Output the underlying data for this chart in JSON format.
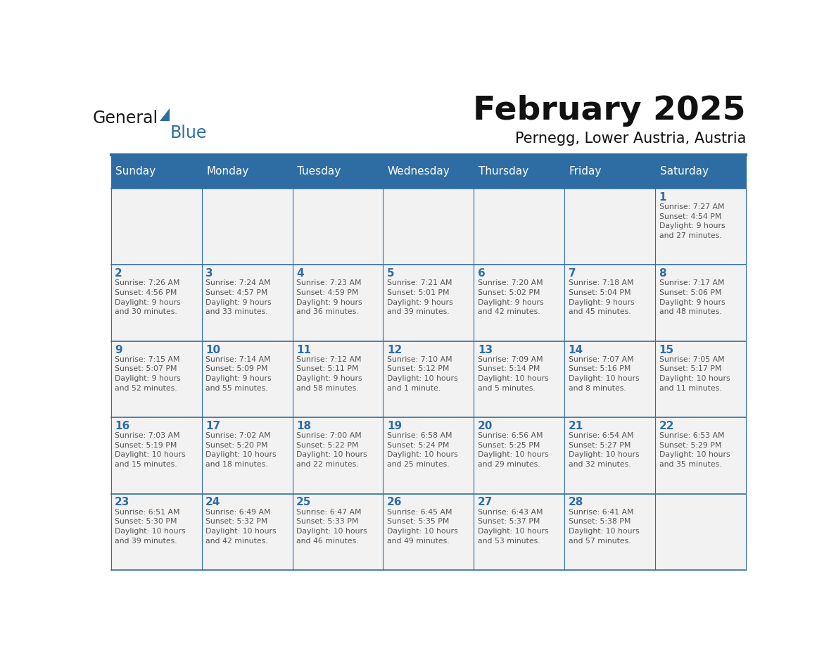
{
  "title": "February 2025",
  "subtitle": "Pernegg, Lower Austria, Austria",
  "header_color": "#2E6DA4",
  "header_text_color": "#FFFFFF",
  "cell_bg_color": "#F2F2F2",
  "border_color": "#2E6DA4",
  "text_color": "#555555",
  "day_number_color": "#2E6DA4",
  "days_of_week": [
    "Sunday",
    "Monday",
    "Tuesday",
    "Wednesday",
    "Thursday",
    "Friday",
    "Saturday"
  ],
  "weeks": [
    [
      {
        "day": null,
        "info": null
      },
      {
        "day": null,
        "info": null
      },
      {
        "day": null,
        "info": null
      },
      {
        "day": null,
        "info": null
      },
      {
        "day": null,
        "info": null
      },
      {
        "day": null,
        "info": null
      },
      {
        "day": 1,
        "info": "Sunrise: 7:27 AM\nSunset: 4:54 PM\nDaylight: 9 hours\nand 27 minutes."
      }
    ],
    [
      {
        "day": 2,
        "info": "Sunrise: 7:26 AM\nSunset: 4:56 PM\nDaylight: 9 hours\nand 30 minutes."
      },
      {
        "day": 3,
        "info": "Sunrise: 7:24 AM\nSunset: 4:57 PM\nDaylight: 9 hours\nand 33 minutes."
      },
      {
        "day": 4,
        "info": "Sunrise: 7:23 AM\nSunset: 4:59 PM\nDaylight: 9 hours\nand 36 minutes."
      },
      {
        "day": 5,
        "info": "Sunrise: 7:21 AM\nSunset: 5:01 PM\nDaylight: 9 hours\nand 39 minutes."
      },
      {
        "day": 6,
        "info": "Sunrise: 7:20 AM\nSunset: 5:02 PM\nDaylight: 9 hours\nand 42 minutes."
      },
      {
        "day": 7,
        "info": "Sunrise: 7:18 AM\nSunset: 5:04 PM\nDaylight: 9 hours\nand 45 minutes."
      },
      {
        "day": 8,
        "info": "Sunrise: 7:17 AM\nSunset: 5:06 PM\nDaylight: 9 hours\nand 48 minutes."
      }
    ],
    [
      {
        "day": 9,
        "info": "Sunrise: 7:15 AM\nSunset: 5:07 PM\nDaylight: 9 hours\nand 52 minutes."
      },
      {
        "day": 10,
        "info": "Sunrise: 7:14 AM\nSunset: 5:09 PM\nDaylight: 9 hours\nand 55 minutes."
      },
      {
        "day": 11,
        "info": "Sunrise: 7:12 AM\nSunset: 5:11 PM\nDaylight: 9 hours\nand 58 minutes."
      },
      {
        "day": 12,
        "info": "Sunrise: 7:10 AM\nSunset: 5:12 PM\nDaylight: 10 hours\nand 1 minute."
      },
      {
        "day": 13,
        "info": "Sunrise: 7:09 AM\nSunset: 5:14 PM\nDaylight: 10 hours\nand 5 minutes."
      },
      {
        "day": 14,
        "info": "Sunrise: 7:07 AM\nSunset: 5:16 PM\nDaylight: 10 hours\nand 8 minutes."
      },
      {
        "day": 15,
        "info": "Sunrise: 7:05 AM\nSunset: 5:17 PM\nDaylight: 10 hours\nand 11 minutes."
      }
    ],
    [
      {
        "day": 16,
        "info": "Sunrise: 7:03 AM\nSunset: 5:19 PM\nDaylight: 10 hours\nand 15 minutes."
      },
      {
        "day": 17,
        "info": "Sunrise: 7:02 AM\nSunset: 5:20 PM\nDaylight: 10 hours\nand 18 minutes."
      },
      {
        "day": 18,
        "info": "Sunrise: 7:00 AM\nSunset: 5:22 PM\nDaylight: 10 hours\nand 22 minutes."
      },
      {
        "day": 19,
        "info": "Sunrise: 6:58 AM\nSunset: 5:24 PM\nDaylight: 10 hours\nand 25 minutes."
      },
      {
        "day": 20,
        "info": "Sunrise: 6:56 AM\nSunset: 5:25 PM\nDaylight: 10 hours\nand 29 minutes."
      },
      {
        "day": 21,
        "info": "Sunrise: 6:54 AM\nSunset: 5:27 PM\nDaylight: 10 hours\nand 32 minutes."
      },
      {
        "day": 22,
        "info": "Sunrise: 6:53 AM\nSunset: 5:29 PM\nDaylight: 10 hours\nand 35 minutes."
      }
    ],
    [
      {
        "day": 23,
        "info": "Sunrise: 6:51 AM\nSunset: 5:30 PM\nDaylight: 10 hours\nand 39 minutes."
      },
      {
        "day": 24,
        "info": "Sunrise: 6:49 AM\nSunset: 5:32 PM\nDaylight: 10 hours\nand 42 minutes."
      },
      {
        "day": 25,
        "info": "Sunrise: 6:47 AM\nSunset: 5:33 PM\nDaylight: 10 hours\nand 46 minutes."
      },
      {
        "day": 26,
        "info": "Sunrise: 6:45 AM\nSunset: 5:35 PM\nDaylight: 10 hours\nand 49 minutes."
      },
      {
        "day": 27,
        "info": "Sunrise: 6:43 AM\nSunset: 5:37 PM\nDaylight: 10 hours\nand 53 minutes."
      },
      {
        "day": 28,
        "info": "Sunrise: 6:41 AM\nSunset: 5:38 PM\nDaylight: 10 hours\nand 57 minutes."
      },
      {
        "day": null,
        "info": null
      }
    ]
  ],
  "logo_text_general": "General",
  "logo_text_blue": "Blue",
  "logo_color_general": "#1a1a1a",
  "logo_color_blue": "#2E6DA4"
}
